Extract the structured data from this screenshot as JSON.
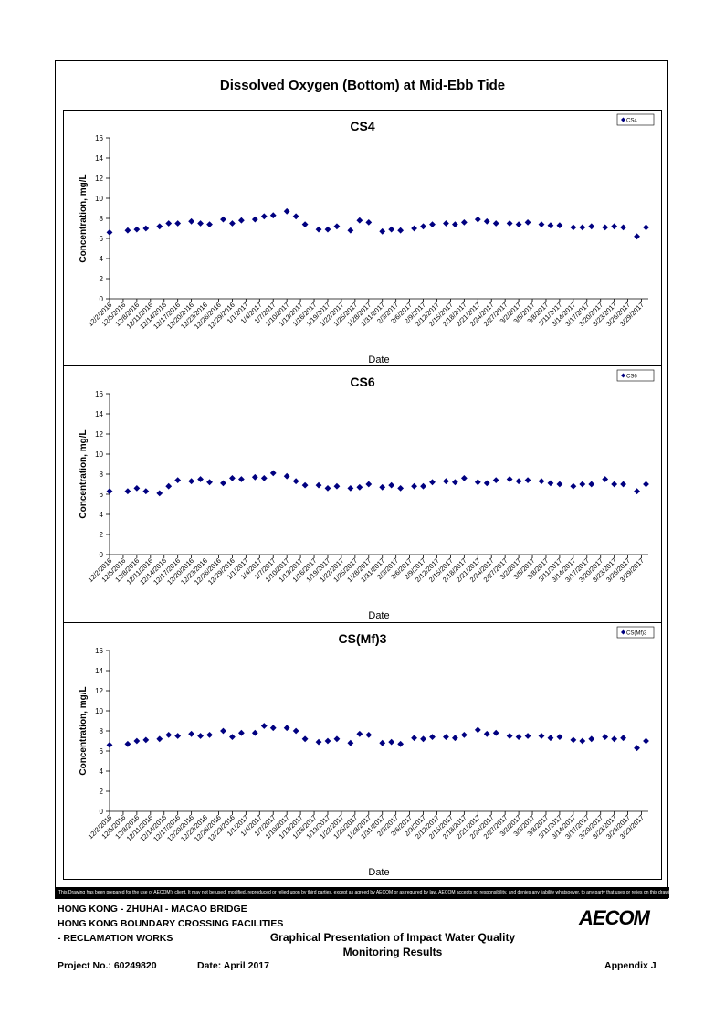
{
  "page_title": "Dissolved Oxygen (Bottom) at Mid-Ebb Tide",
  "disclaimer": "This Drawing has been prepared for the use of AECOM's client. It may not be used, modified, reproduced or relied upon by third parties, except as agreed by AECOM or as required by law. AECOM accepts no responsibility, and denies any liability whatsoever, to any party that uses or relies on this drawing without AECOM's express written consent.",
  "footer": {
    "line1": "HONG KONG - ZHUHAI - MACAO BRIDGE",
    "line2": "HONG KONG BOUNDARY CROSSING FACILITIES",
    "line3": "- RECLAMATION WORKS",
    "heading1": "Graphical Presentation of Impact Water Quality",
    "heading2": "Monitoring Results",
    "project": "Project No.: 60249820",
    "date": "Date: April 2017",
    "appendix": "Appendix J",
    "logo": "AECOM"
  },
  "chart_data": [
    {
      "type": "scatter",
      "title": "CS4",
      "xlabel": "Date",
      "ylabel": "Concentration, mg/L",
      "ylim": [
        0,
        16
      ],
      "yticks": [
        0,
        2,
        4,
        6,
        8,
        10,
        12,
        14,
        16
      ],
      "xticks": [
        "12/2/2016",
        "12/5/2016",
        "12/8/2016",
        "12/11/2016",
        "12/14/2016",
        "12/17/2016",
        "12/20/2016",
        "12/23/2016",
        "12/26/2016",
        "12/29/2016",
        "1/1/2017",
        "1/4/2017",
        "1/7/2017",
        "1/10/2017",
        "1/13/2017",
        "1/16/2017",
        "1/19/2017",
        "1/22/2017",
        "1/25/2017",
        "1/28/2017",
        "1/31/2017",
        "2/3/2017",
        "2/6/2017",
        "2/9/2017",
        "2/12/2017",
        "2/15/2017",
        "2/18/2017",
        "2/21/2017",
        "2/24/2017",
        "2/27/2017",
        "3/2/2017",
        "3/5/2017",
        "3/8/2017",
        "3/11/2017",
        "3/14/2017",
        "3/17/2017",
        "3/20/2017",
        "3/23/2017",
        "3/26/2017",
        "3/29/2017"
      ],
      "legend": "top-right",
      "series": [
        {
          "name": "CS4",
          "color": "#000080",
          "points": [
            [
              "12/2/2016",
              6.6
            ],
            [
              "12/6/2016",
              6.8
            ],
            [
              "12/8/2016",
              6.9
            ],
            [
              "12/10/2016",
              7.0
            ],
            [
              "12/13/2016",
              7.2
            ],
            [
              "12/15/2016",
              7.5
            ],
            [
              "12/17/2016",
              7.5
            ],
            [
              "12/20/2016",
              7.7
            ],
            [
              "12/22/2016",
              7.5
            ],
            [
              "12/24/2016",
              7.4
            ],
            [
              "12/27/2016",
              7.9
            ],
            [
              "12/29/2016",
              7.5
            ],
            [
              "12/31/2016",
              7.8
            ],
            [
              "1/3/2017",
              7.9
            ],
            [
              "1/5/2017",
              8.2
            ],
            [
              "1/7/2017",
              8.3
            ],
            [
              "1/10/2017",
              8.7
            ],
            [
              "1/12/2017",
              8.2
            ],
            [
              "1/14/2017",
              7.4
            ],
            [
              "1/17/2017",
              6.9
            ],
            [
              "1/19/2017",
              6.9
            ],
            [
              "1/21/2017",
              7.2
            ],
            [
              "1/24/2017",
              6.8
            ],
            [
              "1/26/2017",
              7.8
            ],
            [
              "1/28/2017",
              7.6
            ],
            [
              "1/31/2017",
              6.7
            ],
            [
              "2/2/2017",
              6.9
            ],
            [
              "2/4/2017",
              6.8
            ],
            [
              "2/7/2017",
              7.0
            ],
            [
              "2/9/2017",
              7.2
            ],
            [
              "2/11/2017",
              7.4
            ],
            [
              "2/14/2017",
              7.5
            ],
            [
              "2/16/2017",
              7.4
            ],
            [
              "2/18/2017",
              7.6
            ],
            [
              "2/21/2017",
              7.9
            ],
            [
              "2/23/2017",
              7.7
            ],
            [
              "2/25/2017",
              7.5
            ],
            [
              "2/28/2017",
              7.5
            ],
            [
              "3/2/2017",
              7.4
            ],
            [
              "3/4/2017",
              7.6
            ],
            [
              "3/7/2017",
              7.4
            ],
            [
              "3/9/2017",
              7.3
            ],
            [
              "3/11/2017",
              7.3
            ],
            [
              "3/14/2017",
              7.1
            ],
            [
              "3/16/2017",
              7.1
            ],
            [
              "3/18/2017",
              7.2
            ],
            [
              "3/21/2017",
              7.1
            ],
            [
              "3/23/2017",
              7.2
            ],
            [
              "3/25/2017",
              7.1
            ],
            [
              "3/28/2017",
              6.2
            ],
            [
              "3/30/2017",
              7.1
            ]
          ]
        }
      ]
    },
    {
      "type": "scatter",
      "title": "CS6",
      "xlabel": "Date",
      "ylabel": "Concentration, mg/L",
      "ylim": [
        0,
        16
      ],
      "yticks": [
        0,
        2,
        4,
        6,
        8,
        10,
        12,
        14,
        16
      ],
      "xticks": [
        "12/2/2016",
        "12/5/2016",
        "12/8/2016",
        "12/11/2016",
        "12/14/2016",
        "12/17/2016",
        "12/20/2016",
        "12/23/2016",
        "12/26/2016",
        "12/29/2016",
        "1/1/2017",
        "1/4/2017",
        "1/7/2017",
        "1/10/2017",
        "1/13/2017",
        "1/16/2017",
        "1/19/2017",
        "1/22/2017",
        "1/25/2017",
        "1/28/2017",
        "1/31/2017",
        "2/3/2017",
        "2/6/2017",
        "2/9/2017",
        "2/12/2017",
        "2/15/2017",
        "2/18/2017",
        "2/21/2017",
        "2/24/2017",
        "2/27/2017",
        "3/2/2017",
        "3/5/2017",
        "3/8/2017",
        "3/11/2017",
        "3/14/2017",
        "3/17/2017",
        "3/20/2017",
        "3/23/2017",
        "3/26/2017",
        "3/29/2017"
      ],
      "legend": "top-right",
      "series": [
        {
          "name": "CS6",
          "color": "#000080",
          "points": [
            [
              "12/2/2016",
              6.3
            ],
            [
              "12/6/2016",
              6.3
            ],
            [
              "12/8/2016",
              6.6
            ],
            [
              "12/10/2016",
              6.3
            ],
            [
              "12/13/2016",
              6.1
            ],
            [
              "12/15/2016",
              6.8
            ],
            [
              "12/17/2016",
              7.4
            ],
            [
              "12/20/2016",
              7.3
            ],
            [
              "12/22/2016",
              7.5
            ],
            [
              "12/24/2016",
              7.2
            ],
            [
              "12/27/2016",
              7.1
            ],
            [
              "12/29/2016",
              7.6
            ],
            [
              "12/31/2016",
              7.5
            ],
            [
              "1/3/2017",
              7.7
            ],
            [
              "1/5/2017",
              7.6
            ],
            [
              "1/7/2017",
              8.1
            ],
            [
              "1/10/2017",
              7.8
            ],
            [
              "1/12/2017",
              7.3
            ],
            [
              "1/14/2017",
              6.9
            ],
            [
              "1/17/2017",
              6.9
            ],
            [
              "1/19/2017",
              6.6
            ],
            [
              "1/21/2017",
              6.8
            ],
            [
              "1/24/2017",
              6.6
            ],
            [
              "1/26/2017",
              6.7
            ],
            [
              "1/28/2017",
              7.0
            ],
            [
              "1/31/2017",
              6.7
            ],
            [
              "2/2/2017",
              6.9
            ],
            [
              "2/4/2017",
              6.6
            ],
            [
              "2/7/2017",
              6.8
            ],
            [
              "2/9/2017",
              6.8
            ],
            [
              "2/11/2017",
              7.2
            ],
            [
              "2/14/2017",
              7.3
            ],
            [
              "2/16/2017",
              7.2
            ],
            [
              "2/18/2017",
              7.6
            ],
            [
              "2/21/2017",
              7.2
            ],
            [
              "2/23/2017",
              7.1
            ],
            [
              "2/25/2017",
              7.4
            ],
            [
              "2/28/2017",
              7.5
            ],
            [
              "3/2/2017",
              7.3
            ],
            [
              "3/4/2017",
              7.4
            ],
            [
              "3/7/2017",
              7.3
            ],
            [
              "3/9/2017",
              7.1
            ],
            [
              "3/11/2017",
              7.0
            ],
            [
              "3/14/2017",
              6.8
            ],
            [
              "3/16/2017",
              7.0
            ],
            [
              "3/18/2017",
              7.0
            ],
            [
              "3/21/2017",
              7.5
            ],
            [
              "3/23/2017",
              7.0
            ],
            [
              "3/25/2017",
              7.0
            ],
            [
              "3/28/2017",
              6.3
            ],
            [
              "3/30/2017",
              7.0
            ]
          ]
        }
      ]
    },
    {
      "type": "scatter",
      "title": "CS(Mf)3",
      "xlabel": "Date",
      "ylabel": "Concentration, mg/L",
      "ylim": [
        0,
        16
      ],
      "yticks": [
        0,
        2,
        4,
        6,
        8,
        10,
        12,
        14,
        16
      ],
      "xticks": [
        "12/2/2016",
        "12/5/2016",
        "12/8/2016",
        "12/11/2016",
        "12/14/2016",
        "12/17/2016",
        "12/20/2016",
        "12/23/2016",
        "12/26/2016",
        "12/29/2016",
        "1/1/2017",
        "1/4/2017",
        "1/7/2017",
        "1/10/2017",
        "1/13/2017",
        "1/16/2017",
        "1/19/2017",
        "1/22/2017",
        "1/25/2017",
        "1/28/2017",
        "1/31/2017",
        "2/3/2017",
        "2/6/2017",
        "2/9/2017",
        "2/12/2017",
        "2/15/2017",
        "2/18/2017",
        "2/21/2017",
        "2/24/2017",
        "2/27/2017",
        "3/2/2017",
        "3/5/2017",
        "3/8/2017",
        "3/11/2017",
        "3/14/2017",
        "3/17/2017",
        "3/20/2017",
        "3/23/2017",
        "3/26/2017",
        "3/29/2017"
      ],
      "legend": "top-right",
      "series": [
        {
          "name": "CS(Mf)3",
          "color": "#000080",
          "points": [
            [
              "12/2/2016",
              6.6
            ],
            [
              "12/6/2016",
              6.7
            ],
            [
              "12/8/2016",
              7.0
            ],
            [
              "12/10/2016",
              7.1
            ],
            [
              "12/13/2016",
              7.2
            ],
            [
              "12/15/2016",
              7.6
            ],
            [
              "12/17/2016",
              7.5
            ],
            [
              "12/20/2016",
              7.7
            ],
            [
              "12/22/2016",
              7.5
            ],
            [
              "12/24/2016",
              7.6
            ],
            [
              "12/27/2016",
              8.0
            ],
            [
              "12/29/2016",
              7.4
            ],
            [
              "12/31/2016",
              7.8
            ],
            [
              "1/3/2017",
              7.8
            ],
            [
              "1/5/2017",
              8.5
            ],
            [
              "1/7/2017",
              8.3
            ],
            [
              "1/10/2017",
              8.3
            ],
            [
              "1/12/2017",
              8.0
            ],
            [
              "1/14/2017",
              7.2
            ],
            [
              "1/17/2017",
              6.9
            ],
            [
              "1/19/2017",
              7.0
            ],
            [
              "1/21/2017",
              7.2
            ],
            [
              "1/24/2017",
              6.8
            ],
            [
              "1/26/2017",
              7.7
            ],
            [
              "1/28/2017",
              7.6
            ],
            [
              "1/31/2017",
              6.8
            ],
            [
              "2/2/2017",
              6.9
            ],
            [
              "2/4/2017",
              6.7
            ],
            [
              "2/7/2017",
              7.3
            ],
            [
              "2/9/2017",
              7.2
            ],
            [
              "2/11/2017",
              7.4
            ],
            [
              "2/14/2017",
              7.4
            ],
            [
              "2/16/2017",
              7.3
            ],
            [
              "2/18/2017",
              7.6
            ],
            [
              "2/21/2017",
              8.1
            ],
            [
              "2/23/2017",
              7.7
            ],
            [
              "2/25/2017",
              7.8
            ],
            [
              "2/28/2017",
              7.5
            ],
            [
              "3/2/2017",
              7.4
            ],
            [
              "3/4/2017",
              7.5
            ],
            [
              "3/7/2017",
              7.5
            ],
            [
              "3/9/2017",
              7.3
            ],
            [
              "3/11/2017",
              7.4
            ],
            [
              "3/14/2017",
              7.1
            ],
            [
              "3/16/2017",
              7.0
            ],
            [
              "3/18/2017",
              7.2
            ],
            [
              "3/21/2017",
              7.4
            ],
            [
              "3/23/2017",
              7.2
            ],
            [
              "3/25/2017",
              7.3
            ],
            [
              "3/28/2017",
              6.3
            ],
            [
              "3/30/2017",
              7.0
            ]
          ]
        }
      ]
    }
  ]
}
